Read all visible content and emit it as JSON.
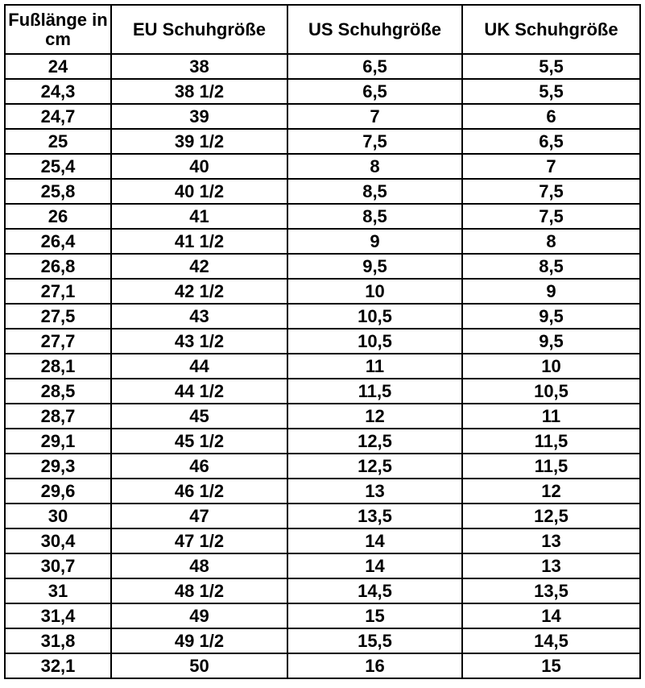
{
  "table": {
    "header": [
      "Fußlänge in cm",
      "EU Schuhgröße",
      "US Schuhgröße",
      "UK Schuhgröße"
    ],
    "rows": [
      [
        "24",
        "38",
        "6,5",
        "5,5"
      ],
      [
        "24,3",
        "38 1/2",
        "6,5",
        "5,5"
      ],
      [
        "24,7",
        "39",
        "7",
        "6"
      ],
      [
        "25",
        "39 1/2",
        "7,5",
        "6,5"
      ],
      [
        "25,4",
        "40",
        "8",
        "7"
      ],
      [
        "25,8",
        "40 1/2",
        "8,5",
        "7,5"
      ],
      [
        "26",
        "41",
        "8,5",
        "7,5"
      ],
      [
        "26,4",
        "41 1/2",
        "9",
        "8"
      ],
      [
        "26,8",
        "42",
        "9,5",
        "8,5"
      ],
      [
        "27,1",
        "42 1/2",
        "10",
        "9"
      ],
      [
        "27,5",
        "43",
        "10,5",
        "9,5"
      ],
      [
        "27,7",
        "43 1/2",
        "10,5",
        "9,5"
      ],
      [
        "28,1",
        "44",
        "11",
        "10"
      ],
      [
        "28,5",
        "44 1/2",
        "11,5",
        "10,5"
      ],
      [
        "28,7",
        "45",
        "12",
        "11"
      ],
      [
        "29,1",
        "45 1/2",
        "12,5",
        "11,5"
      ],
      [
        "29,3",
        "46",
        "12,5",
        "11,5"
      ],
      [
        "29,6",
        "46 1/2",
        "13",
        "12"
      ],
      [
        "30",
        "47",
        "13,5",
        "12,5"
      ],
      [
        "30,4",
        "47 1/2",
        "14",
        "13"
      ],
      [
        "30,7",
        "48",
        "14",
        "13"
      ],
      [
        "31",
        "48 1/2",
        "14,5",
        "13,5"
      ],
      [
        "31,4",
        "49",
        "15",
        "14"
      ],
      [
        "31,8",
        "49 1/2",
        "15,5",
        "14,5"
      ],
      [
        "32,1",
        "50",
        "16",
        "15"
      ]
    ]
  }
}
